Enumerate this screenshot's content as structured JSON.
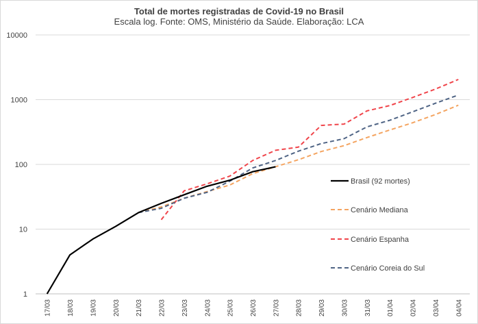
{
  "chart_data": {
    "type": "line",
    "title": "Total de mortes registradas de Covid-19 no Brasil",
    "subtitle": "Escala log. Fonte: OMS, Ministério da Saúde. Elaboração: LCA",
    "xlabel": "",
    "ylabel": "",
    "y_scale": "log",
    "ylim": [
      1,
      10000
    ],
    "y_ticks": [
      "1",
      "10",
      "100",
      "1000",
      "10000"
    ],
    "grid": true,
    "legend_position": "right",
    "categories": [
      "17/03",
      "18/03",
      "19/03",
      "20/03",
      "21/03",
      "22/03",
      "23/03",
      "24/03",
      "25/03",
      "26/03",
      "27/03",
      "28/03",
      "29/03",
      "30/03",
      "31/03",
      "01/04",
      "02/04",
      "03/04",
      "04/04"
    ],
    "series": [
      {
        "name": "Brasil (92 mortes)",
        "color": "#000000",
        "style": "solid",
        "values": [
          1,
          4,
          7,
          11,
          18,
          25,
          34,
          46,
          57,
          77,
          92,
          null,
          null,
          null,
          null,
          null,
          null,
          null,
          null
        ]
      },
      {
        "name": "Cenário Mediana",
        "color": "#f4a460",
        "style": "dashed",
        "values": [
          null,
          null,
          null,
          null,
          18,
          22,
          30,
          38,
          48,
          72,
          92,
          118,
          158,
          195,
          260,
          340,
          440,
          590,
          820
        ]
      },
      {
        "name": "Cenário Espanha",
        "color": "#f0444a",
        "style": "dashed",
        "values": [
          null,
          null,
          null,
          null,
          null,
          14,
          39,
          50,
          66,
          115,
          165,
          185,
          400,
          420,
          670,
          810,
          1080,
          1460,
          2050
        ]
      },
      {
        "name": "Cenário Coreia do Sul",
        "color": "#4e6384",
        "style": "dashed",
        "values": [
          null,
          null,
          null,
          null,
          18,
          21,
          30,
          37,
          55,
          88,
          115,
          160,
          210,
          250,
          380,
          480,
          650,
          880,
          1180
        ]
      }
    ]
  }
}
